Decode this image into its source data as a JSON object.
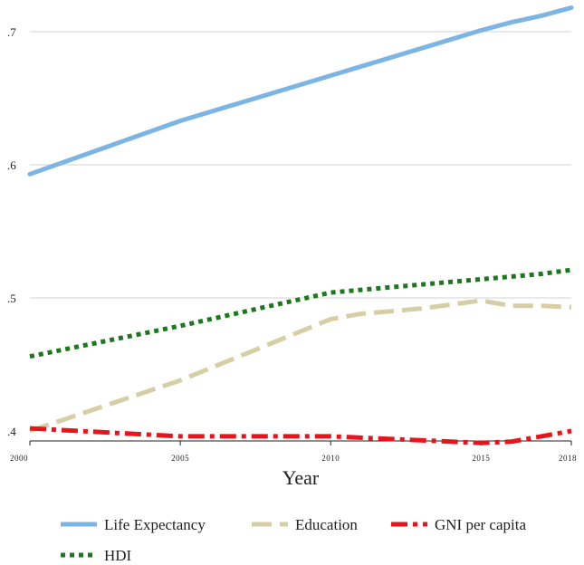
{
  "chart_data": {
    "type": "line",
    "xlabel": "Year",
    "ylabel": "",
    "xlim": [
      2000,
      2018
    ],
    "ylim": [
      0.4,
      0.7
    ],
    "xticks": [
      2000,
      2005,
      2010,
      2015,
      2018
    ],
    "xtick_labels": [
      "2000",
      "2005",
      "2010",
      "2015",
      "2018"
    ],
    "yticks": [
      0.4,
      0.5,
      0.6,
      0.7
    ],
    "ytick_labels": [
      ".4",
      ".5",
      ".6",
      ".7"
    ],
    "grid": true,
    "legend_position": "bottom",
    "series": [
      {
        "name": "Life Expectancy",
        "color": "#7cb5e3",
        "style": "solid",
        "x": [
          2000,
          2005,
          2010,
          2015,
          2016,
          2017,
          2018
        ],
        "y": [
          0.593,
          0.633,
          0.667,
          0.701,
          0.707,
          0.712,
          0.718
        ]
      },
      {
        "name": "Education",
        "color": "#d6cfa5",
        "style": "dashed",
        "x": [
          2000,
          2005,
          2010,
          2011,
          2012,
          2013,
          2014,
          2015,
          2016,
          2017,
          2018
        ],
        "y": [
          0.4,
          0.438,
          0.484,
          0.488,
          0.49,
          0.492,
          0.495,
          0.498,
          0.494,
          0.494,
          0.493
        ]
      },
      {
        "name": "GNI per capita",
        "color": "#e8141b",
        "style": "dashdot",
        "x": [
          2000,
          2005,
          2010,
          2015,
          2016,
          2017,
          2018
        ],
        "y": [
          0.402,
          0.396,
          0.396,
          0.391,
          0.392,
          0.396,
          0.4
        ]
      },
      {
        "name": "HDI",
        "color": "#1a7a1a",
        "style": "dotted",
        "x": [
          2000,
          2005,
          2010,
          2015,
          2016,
          2017,
          2018
        ],
        "y": [
          0.456,
          0.479,
          0.504,
          0.514,
          0.516,
          0.518,
          0.521
        ]
      }
    ]
  }
}
